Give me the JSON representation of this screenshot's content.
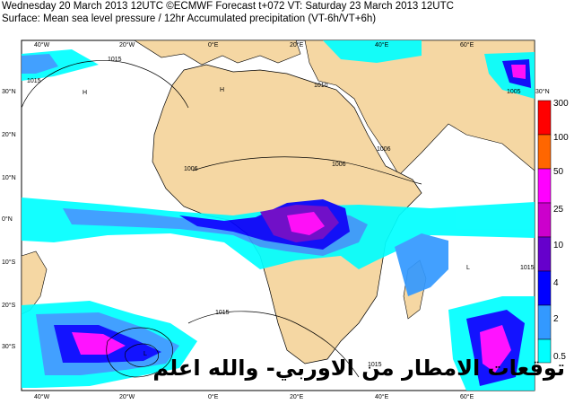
{
  "header": {
    "line1": "Wednesday 20 March 2013 12UTC ©ECMWF Forecast t+072 VT: Saturday 23 March 2013 12UTC",
    "line2": "Surface: Mean sea level pressure / 12hr Accumulated precipitation (VT-6h/VT+6h)"
  },
  "map": {
    "lon_ticks_top": [
      "40°W",
      "20°W",
      "0°E",
      "20°E",
      "40°E",
      "60°E"
    ],
    "lon_ticks_bottom": [
      "40°W",
      "20°W",
      "0°E",
      "20°E",
      "40°E",
      "60°E"
    ],
    "lat_ticks_left": [
      "30°N",
      "20°N",
      "10°N",
      "0°N",
      "10°S",
      "20°S",
      "30°S"
    ],
    "lat_ticks_right": [
      "30°N"
    ],
    "isobar_labels": [
      "1015",
      "1015",
      "1010",
      "1006",
      "1006",
      "1005",
      "1006",
      "1015",
      "1015",
      "1015"
    ],
    "pressure_letters": [
      "H",
      "L"
    ],
    "colors": {
      "land": "#f5d7a3",
      "ocean": "#ffffff",
      "coast": "#000000"
    }
  },
  "colorbar": {
    "labels": [
      "300",
      "100",
      "50",
      "25",
      "10",
      "4",
      "2",
      "0.5"
    ],
    "colors": [
      "#ff0000",
      "#ff6600",
      "#ff00ff",
      "#cc00cc",
      "#6600cc",
      "#0000ff",
      "#3399ff",
      "#00ffff"
    ]
  },
  "overlay_text": "توقعات الامطار من الاوربي- والله اعلم"
}
